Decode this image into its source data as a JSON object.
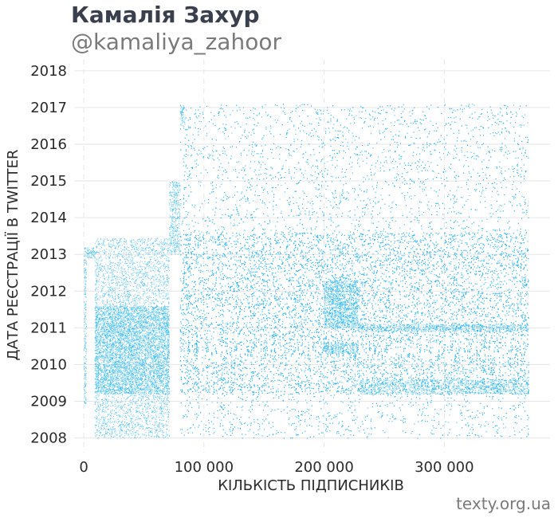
{
  "header": {
    "title": "Камалія Захур",
    "handle": "@kamaliya_zahoor"
  },
  "footer": {
    "credit": "texty.org.ua"
  },
  "colors": {
    "points": "#29b6f6",
    "grid": "#e6e6e6",
    "title": "#3a3f4e",
    "subtitle": "#7a7a7a",
    "text": "#2b2b2b"
  },
  "chart_data": {
    "type": "scatter",
    "title": "Камалія Захур",
    "subtitle": "@kamaliya_zahoor",
    "xlabel": "КІЛЬКІСТЬ ПІДПИСНИКІВ",
    "ylabel": "ДАТА РЕЄСТРАЦІЇ В TWITTER",
    "xlim": [
      -8000,
      388000
    ],
    "ylim": [
      2007.6,
      2018.3
    ],
    "x_ticks": [
      0,
      100000,
      200000,
      300000
    ],
    "x_tick_labels": [
      "0",
      "100 000",
      "200 000",
      "300 000"
    ],
    "y_ticks": [
      2008,
      2009,
      2010,
      2011,
      2012,
      2013,
      2014,
      2015,
      2016,
      2017,
      2018
    ],
    "y_tick_labels": [
      "2008",
      "2009",
      "2010",
      "2011",
      "2012",
      "2013",
      "2014",
      "2015",
      "2016",
      "2017",
      "2018"
    ],
    "grid": true,
    "legend": "none",
    "series": [
      {
        "points_are_approximate_density": true,
        "regions": [
          {
            "x": [
              0,
              2000
            ],
            "y": [
              2008.9,
              2013.2
            ],
            "density": 0.7
          },
          {
            "x": [
              2000,
              9000
            ],
            "y": [
              2012.9,
              2013.2
            ],
            "density": 0.9
          },
          {
            "x": [
              9000,
              71000
            ],
            "y": [
              2008.0,
              2013.45
            ],
            "density": 0.35
          },
          {
            "x": [
              9000,
              71000
            ],
            "y": [
              2009.2,
              2011.6
            ],
            "density": 0.75
          },
          {
            "x": [
              71000,
              80000
            ],
            "y": [
              2013.0,
              2015.0
            ],
            "density": 0.6
          },
          {
            "x": [
              80000,
              370000
            ],
            "y": [
              2008.0,
              2017.1
            ],
            "density": 0.18
          },
          {
            "x": [
              80000,
              370000
            ],
            "y": [
              2009.2,
              2013.6
            ],
            "density": 0.45
          },
          {
            "x": [
              200000,
              228000
            ],
            "y": [
              2011.0,
              2012.3
            ],
            "density": 0.85
          },
          {
            "x": [
              200000,
              228000
            ],
            "y": [
              2010.3,
              2010.6
            ],
            "density": 0.8
          },
          {
            "x": [
              228000,
              370000
            ],
            "y": [
              2010.9,
              2011.1
            ],
            "density": 0.7
          },
          {
            "x": [
              228000,
              370000
            ],
            "y": [
              2009.2,
              2009.6
            ],
            "density": 0.55
          },
          {
            "x": [
              80000,
              84000
            ],
            "y": [
              2016.5,
              2017.1
            ],
            "density": 0.7
          }
        ]
      }
    ]
  }
}
